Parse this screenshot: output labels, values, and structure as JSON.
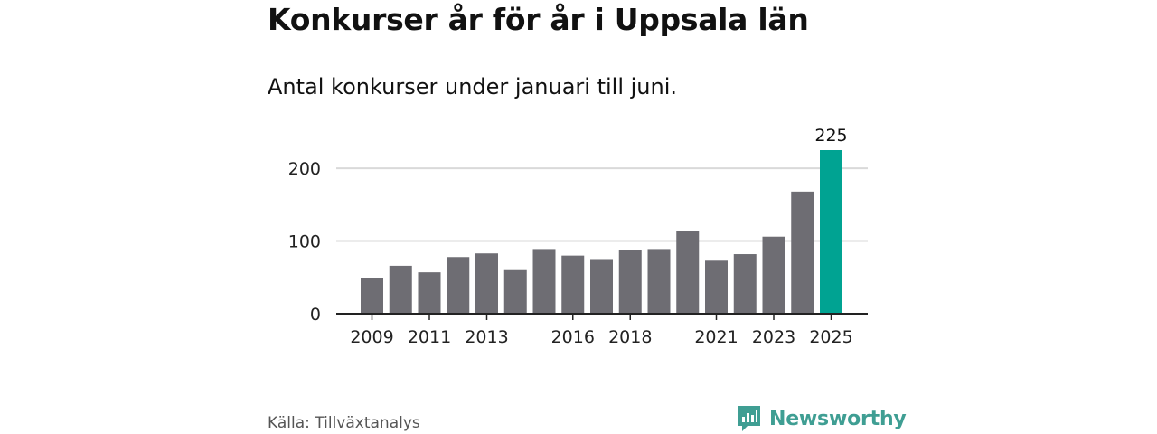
{
  "header": {
    "title": "Konkurser år för år i Uppsala län",
    "subtitle": "Antal konkurser under januari till juni."
  },
  "footer": {
    "source": "Källa: Tillväxtanalys",
    "brand_name": "Newsworthy",
    "brand_icon": "newsworthy-logo-icon"
  },
  "colors": {
    "bar": "#6e6d73",
    "highlight": "#00a392",
    "grid": "#d9d9d9",
    "axis": "#222222",
    "brand": "#3f9e93"
  },
  "chart_data": {
    "type": "bar",
    "categories": [
      "2009",
      "2010",
      "2011",
      "2012",
      "2013",
      "2014",
      "2015",
      "2016",
      "2017",
      "2018",
      "2019",
      "2020",
      "2021",
      "2022",
      "2023",
      "2024",
      "2025"
    ],
    "values": [
      49,
      66,
      57,
      78,
      83,
      60,
      89,
      80,
      74,
      88,
      89,
      114,
      73,
      82,
      106,
      168,
      225
    ],
    "x_tick_labels": [
      "2009",
      "2011",
      "2013",
      "2016",
      "2018",
      "2021",
      "2023",
      "2025"
    ],
    "y_ticks": [
      0,
      100,
      200
    ],
    "ylim": [
      0,
      225
    ],
    "highlight_category": "2025",
    "data_labels": [
      {
        "category": "2025",
        "text": "225"
      }
    ],
    "grid": true,
    "title": "Konkurser år för år i Uppsala län",
    "subtitle": "Antal konkurser under januari till juni.",
    "xlabel": "",
    "ylabel": ""
  }
}
